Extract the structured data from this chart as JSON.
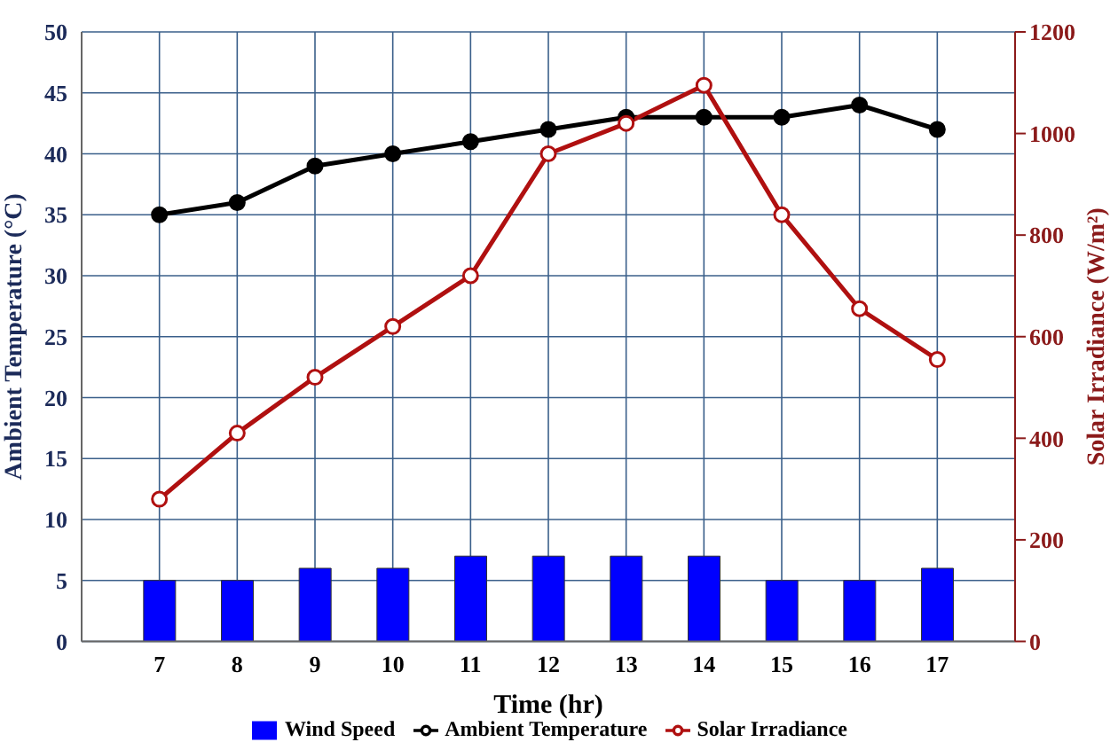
{
  "chart_data": {
    "type": "line",
    "xlabel": "Time (hr)",
    "ylabel": "Ambient Temperature (°C)",
    "y2label": "Solar Irradiance (W/m²)",
    "x": [
      7,
      8,
      9,
      10,
      11,
      12,
      13,
      14,
      15,
      16,
      17
    ],
    "xlim": [
      6,
      18
    ],
    "xticks": [
      7,
      8,
      9,
      10,
      11,
      12,
      13,
      14,
      15,
      16,
      17
    ],
    "ylim": [
      0,
      50
    ],
    "yticks": [
      0,
      5,
      10,
      15,
      20,
      25,
      30,
      35,
      40,
      45,
      50
    ],
    "y2lim": [
      0,
      1200
    ],
    "y2ticks": [
      0,
      200,
      400,
      600,
      800,
      1000,
      1200
    ],
    "series": [
      {
        "name": "Wind Speed",
        "type": "bar",
        "color": "#0000ff",
        "values": [
          5,
          5,
          6,
          6,
          7,
          7,
          7,
          7,
          5,
          5,
          6
        ]
      },
      {
        "name": "Ambient Temperature",
        "color": "#000000",
        "values": [
          35,
          36,
          39,
          40,
          41,
          42,
          43,
          43,
          43,
          44,
          42
        ]
      },
      {
        "name": "Solar Irradiance",
        "axis": "y2",
        "color": "#b01010",
        "values": [
          280,
          410,
          520,
          620,
          720,
          960,
          1020,
          1095,
          840,
          655,
          555
        ]
      }
    ],
    "grid": true,
    "legend": "bottom",
    "marker": "circle"
  }
}
